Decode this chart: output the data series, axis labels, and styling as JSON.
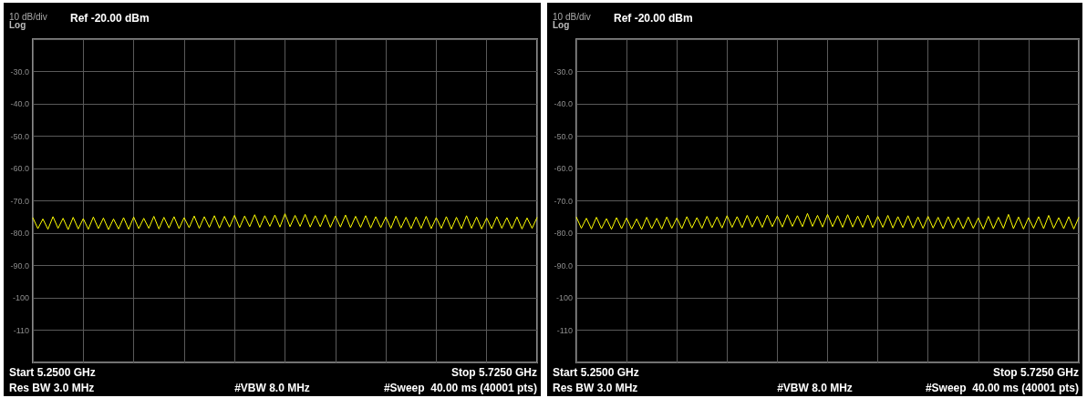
{
  "chart_data": [
    {
      "type": "line",
      "title": "Ref -20.00 dBm",
      "ylabel": "10 dB/div",
      "annotations": [
        "Log",
        "Start 5.2500 GHz",
        "Stop 5.7250 GHz",
        "Res BW 3.0 MHz",
        "#VBW 8.0 MHz",
        "#Sweep  40.00 ms (40001 pts)"
      ],
      "ylim": [
        -120,
        -20
      ],
      "yticks": [
        {
          "value": -120,
          "label": null
        },
        {
          "value": -110,
          "label": "-110"
        },
        {
          "value": -100,
          "label": "-100"
        },
        {
          "value": -90,
          "label": "-90.0"
        },
        {
          "value": -80,
          "label": "-80.0"
        },
        {
          "value": -70,
          "label": "-70.0"
        },
        {
          "value": -60,
          "label": "-60.0"
        },
        {
          "value": -50,
          "label": "-50.0"
        },
        {
          "value": -40,
          "label": "-40.0"
        },
        {
          "value": -30,
          "label": "-30.0"
        },
        {
          "value": -20,
          "label": null
        }
      ],
      "tick_labels": "y",
      "grid": true,
      "categories": [
        null,
        null,
        null,
        null,
        null,
        null,
        null,
        null,
        null,
        null,
        null,
        null,
        null,
        null,
        null,
        null,
        null,
        null,
        null,
        null,
        null,
        null,
        null,
        null,
        null,
        null,
        null,
        null,
        null,
        null,
        null,
        null,
        null,
        null,
        null,
        null,
        null,
        null,
        null,
        null,
        null,
        null,
        null,
        null,
        null,
        null,
        null,
        null,
        null,
        null,
        null,
        null,
        null,
        null,
        null,
        null,
        null,
        null,
        null,
        null,
        null,
        null,
        null,
        null,
        null,
        null,
        null,
        null,
        null,
        null,
        null,
        null,
        null,
        null,
        null,
        null,
        null,
        null,
        null,
        null,
        null,
        null,
        null,
        null,
        null,
        null,
        null,
        null,
        null,
        null,
        null,
        null,
        null,
        null,
        null,
        null,
        null,
        null,
        null,
        null,
        null
      ],
      "series": [
        {
          "color": "#ffff00",
          "values": [
            -75.2,
            -78.6,
            -75.6,
            -78.8,
            -74.9,
            -78.5,
            -75.4,
            -78.9,
            -75.1,
            -78.7,
            -75.5,
            -78.8,
            -75.0,
            -78.6,
            -75.3,
            -78.9,
            -75.6,
            -78.7,
            -75.2,
            -78.8,
            -75.0,
            -78.6,
            -75.4,
            -78.5,
            -74.8,
            -78.7,
            -75.1,
            -78.4,
            -74.9,
            -78.6,
            -75.2,
            -78.3,
            -74.7,
            -78.5,
            -74.9,
            -78.2,
            -74.6,
            -78.4,
            -74.8,
            -78.1,
            -74.5,
            -78.3,
            -74.7,
            -78.0,
            -74.3,
            -78.2,
            -74.6,
            -77.9,
            -74.4,
            -78.1,
            -74.0,
            -78.0,
            -74.5,
            -77.9,
            -74.2,
            -78.1,
            -74.6,
            -78.0,
            -74.3,
            -78.2,
            -74.7,
            -78.1,
            -74.4,
            -78.3,
            -74.8,
            -78.2,
            -74.6,
            -78.4,
            -74.9,
            -78.3,
            -75.0,
            -78.5,
            -74.7,
            -78.4,
            -75.1,
            -78.6,
            -75.0,
            -78.5,
            -74.8,
            -78.6,
            -75.2,
            -78.5,
            -74.9,
            -78.7,
            -75.1,
            -78.6,
            -74.6,
            -78.5,
            -75.0,
            -78.7,
            -75.3,
            -78.6,
            -74.9,
            -78.5,
            -75.2,
            -78.6,
            -75.0,
            -78.7,
            -75.3,
            -78.5,
            -75.1
          ]
        }
      ]
    },
    {
      "type": "line",
      "title": "Ref -20.00 dBm",
      "ylabel": "10 dB/div",
      "annotations": [
        "Log",
        "Start 5.2500 GHz",
        "Stop 5.7250 GHz",
        "Res BW 3.0 MHz",
        "#VBW 8.0 MHz",
        "#Sweep  40.00 ms (40001 pts)"
      ],
      "ylim": [
        -120,
        -20
      ],
      "yticks": [
        {
          "value": -120,
          "label": null
        },
        {
          "value": -110,
          "label": "-110"
        },
        {
          "value": -100,
          "label": "-100"
        },
        {
          "value": -90,
          "label": "-90.0"
        },
        {
          "value": -80,
          "label": "-80.0"
        },
        {
          "value": -70,
          "label": "-70.0"
        },
        {
          "value": -60,
          "label": "-60.0"
        },
        {
          "value": -50,
          "label": "-50.0"
        },
        {
          "value": -40,
          "label": "-40.0"
        },
        {
          "value": -30,
          "label": "-30.0"
        },
        {
          "value": -20,
          "label": null
        }
      ],
      "tick_labels": "y",
      "grid": true,
      "categories": [
        null,
        null,
        null,
        null,
        null,
        null,
        null,
        null,
        null,
        null,
        null,
        null,
        null,
        null,
        null,
        null,
        null,
        null,
        null,
        null,
        null,
        null,
        null,
        null,
        null,
        null,
        null,
        null,
        null,
        null,
        null,
        null,
        null,
        null,
        null,
        null,
        null,
        null,
        null,
        null,
        null,
        null,
        null,
        null,
        null,
        null,
        null,
        null,
        null,
        null,
        null,
        null,
        null,
        null,
        null,
        null,
        null,
        null,
        null,
        null,
        null,
        null,
        null,
        null,
        null,
        null,
        null,
        null,
        null,
        null,
        null,
        null,
        null,
        null,
        null,
        null,
        null,
        null,
        null,
        null,
        null,
        null,
        null,
        null,
        null,
        null,
        null,
        null,
        null,
        null,
        null,
        null,
        null,
        null,
        null,
        null,
        null,
        null,
        null,
        null,
        null
      ],
      "series": [
        {
          "color": "#ffff00",
          "values": [
            -75.0,
            -78.5,
            -75.4,
            -78.7,
            -75.1,
            -78.6,
            -75.5,
            -78.8,
            -75.2,
            -78.6,
            -75.3,
            -78.7,
            -75.6,
            -78.8,
            -75.1,
            -78.6,
            -75.4,
            -78.7,
            -75.0,
            -78.5,
            -75.3,
            -78.6,
            -74.9,
            -78.4,
            -75.2,
            -78.5,
            -74.8,
            -78.3,
            -75.0,
            -78.4,
            -74.6,
            -78.2,
            -74.9,
            -78.3,
            -74.5,
            -78.1,
            -74.8,
            -78.2,
            -74.4,
            -78.0,
            -74.7,
            -78.1,
            -74.3,
            -77.9,
            -74.6,
            -78.0,
            -73.9,
            -77.9,
            -74.5,
            -78.1,
            -74.2,
            -78.0,
            -74.6,
            -78.2,
            -74.3,
            -78.1,
            -74.7,
            -78.2,
            -74.4,
            -78.3,
            -74.8,
            -78.2,
            -74.5,
            -78.4,
            -74.9,
            -78.3,
            -74.6,
            -78.4,
            -75.0,
            -78.5,
            -74.8,
            -78.4,
            -75.1,
            -78.6,
            -74.9,
            -78.5,
            -75.2,
            -78.6,
            -75.0,
            -78.5,
            -75.3,
            -78.7,
            -74.8,
            -78.6,
            -75.1,
            -78.5,
            -74.2,
            -78.6,
            -75.0,
            -78.7,
            -75.2,
            -78.5,
            -74.9,
            -78.6,
            -74.5,
            -78.5,
            -75.2,
            -78.6,
            -74.9,
            -78.7,
            -75.1
          ]
        }
      ]
    }
  ]
}
